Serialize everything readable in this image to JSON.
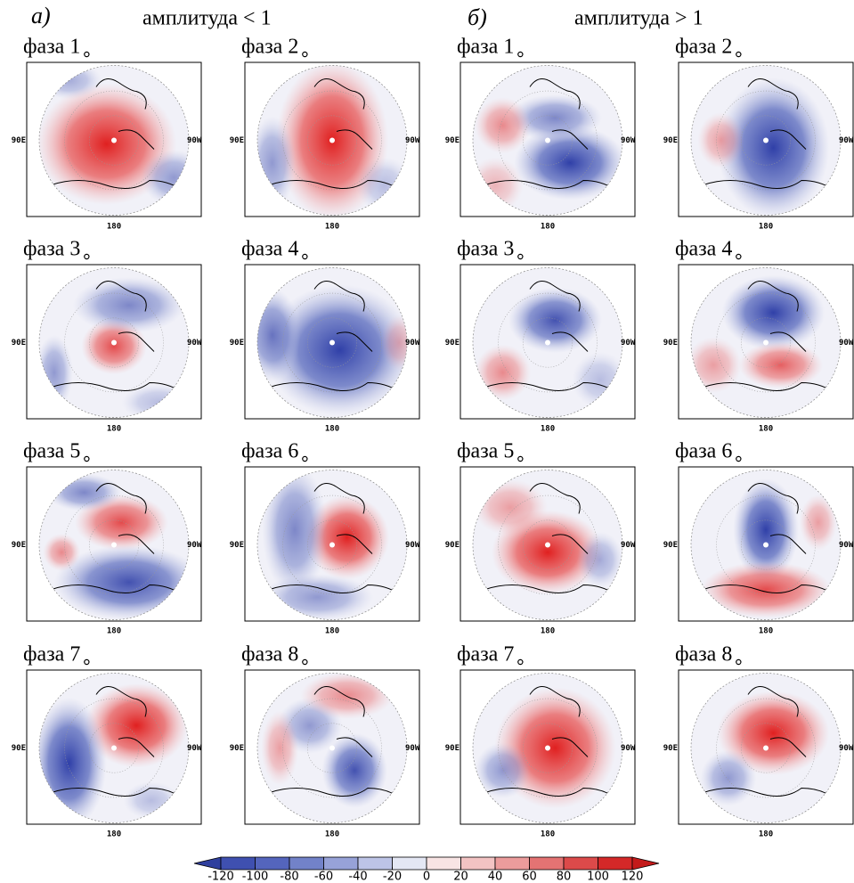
{
  "groups": [
    {
      "label": "а)",
      "title": "амплитуда < 1",
      "panels": [
        {
          "title": "фаза 1"
        },
        {
          "title": "фаза 2"
        },
        {
          "title": "фаза 3"
        },
        {
          "title": "фаза 4"
        },
        {
          "title": "фаза 5"
        },
        {
          "title": "фаза 6"
        },
        {
          "title": "фаза 7"
        },
        {
          "title": "фаза 8"
        }
      ]
    },
    {
      "label": "б)",
      "title": "амплитуда > 1",
      "panels": [
        {
          "title": "фаза 1"
        },
        {
          "title": "фаза 2"
        },
        {
          "title": "фаза 3"
        },
        {
          "title": "фаза 4"
        },
        {
          "title": "фаза 5"
        },
        {
          "title": "фаза 6"
        },
        {
          "title": "фаза 7"
        },
        {
          "title": "фаза 8"
        }
      ]
    }
  ],
  "map_labels": {
    "left": "90E",
    "right": "90W",
    "bottom": "180"
  },
  "colorbar": {
    "ticks": [
      -120,
      -100,
      -80,
      -60,
      -40,
      -20,
      0,
      20,
      40,
      60,
      80,
      100,
      120
    ],
    "colors": [
      "#2f3f9e",
      "#3f50b0",
      "#5465bd",
      "#7282c9",
      "#97a2d8",
      "#bdc4e7",
      "#e4e7f4",
      "#f8e4e4",
      "#f3c3c3",
      "#ec9c9c",
      "#e47373",
      "#dc4a4a",
      "#d42828",
      "#c41a1a"
    ]
  }
}
